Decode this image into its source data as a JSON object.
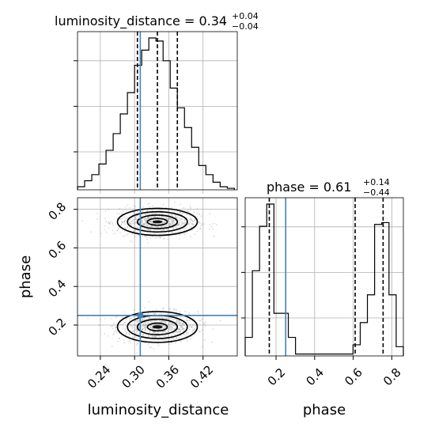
{
  "chart_data": {
    "type": "corner",
    "parameters": [
      "luminosity_distance",
      "phase"
    ],
    "truth": {
      "luminosity_distance": 0.31,
      "phase": 0.25
    },
    "panels": {
      "luminosity_distance_hist": {
        "title_lhs": "luminosity_distance = 0.34",
        "title_sup": "+0.04",
        "title_sub": "−0.04",
        "quantiles": [
          0.305,
          0.34,
          0.375
        ],
        "xlim": [
          0.2,
          0.48
        ],
        "bin_edges": [
          0.2,
          0.2125,
          0.225,
          0.2375,
          0.25,
          0.2625,
          0.275,
          0.2875,
          0.3,
          0.3125,
          0.325,
          0.3375,
          0.35,
          0.3625,
          0.375,
          0.3875,
          0.4,
          0.4125,
          0.425,
          0.4375,
          0.45,
          0.4625,
          0.475
        ],
        "counts": [
          2,
          6,
          10,
          17,
          26,
          37,
          50,
          64,
          82,
          92,
          100,
          98,
          85,
          67,
          54,
          41,
          28,
          16,
          10,
          5,
          2,
          1
        ]
      },
      "phase_hist": {
        "title_lhs": "phase = 0.61",
        "title_sup": "+0.14",
        "title_sub": "−0.44",
        "quantiles": [
          0.165,
          0.61,
          0.755
        ],
        "xlim": [
          0.04,
          0.86
        ],
        "xticks": [
          "0.2",
          "0.4",
          "0.6",
          "0.8"
        ],
        "xtick_values": [
          0.2,
          0.4,
          0.6,
          0.8
        ],
        "xlabel": "phase",
        "bin_edges": [
          0.04,
          0.0773,
          0.1145,
          0.1518,
          0.1891,
          0.2264,
          0.2636,
          0.3009,
          0.3382,
          0.3755,
          0.4127,
          0.45,
          0.4873,
          0.5245,
          0.5618,
          0.5991,
          0.6364,
          0.6736,
          0.7109,
          0.7482,
          0.7855,
          0.8227,
          0.86
        ],
        "counts": [
          10,
          46,
          70,
          82,
          23,
          23,
          10,
          1,
          1,
          1,
          1,
          1,
          1,
          1,
          1,
          6,
          18,
          33,
          71,
          72,
          33,
          5
        ]
      },
      "joint": {
        "xticks": [
          "0.24",
          "0.30",
          "0.36",
          "0.42"
        ],
        "xtick_values": [
          0.24,
          0.3,
          0.36,
          0.42
        ],
        "yticks": [
          "0.2",
          "0.4",
          "0.6",
          "0.8"
        ],
        "ytick_values": [
          0.2,
          0.4,
          0.6,
          0.8
        ],
        "xlabel": "luminosity_distance",
        "ylabel": "phase",
        "xlim": [
          0.2,
          0.48
        ],
        "ylim": [
          0.04,
          0.86
        ],
        "modes": [
          {
            "x": 0.34,
            "y": 0.19,
            "sx": 0.035,
            "sy": 0.04
          },
          {
            "x": 0.34,
            "y": 0.735,
            "sx": 0.035,
            "sy": 0.035
          }
        ]
      }
    }
  }
}
